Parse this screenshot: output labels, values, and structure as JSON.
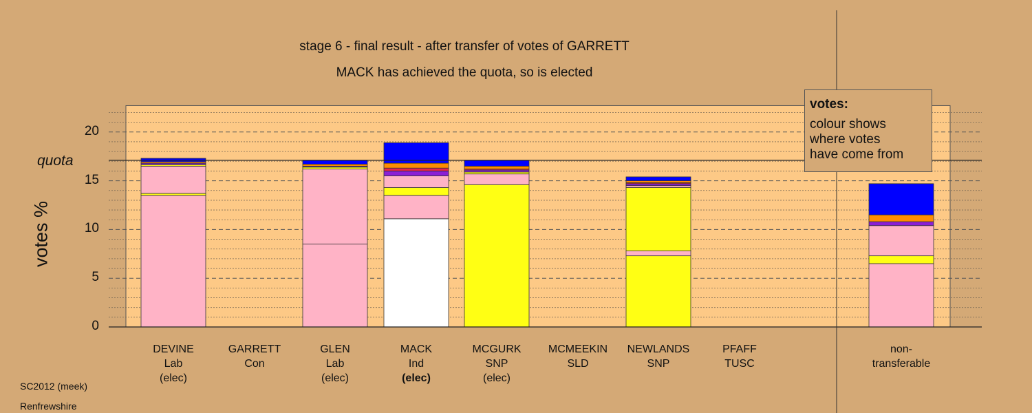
{
  "title": "stage 6 - final result - after transfer of votes of GARRETT",
  "subtitle": "MACK has achieved the quota, so is elected",
  "legend": {
    "title": "votes:",
    "text": [
      "colour shows",
      "where votes",
      "have come from"
    ]
  },
  "footer": {
    "line1": "SC2012 (meek)",
    "line2": "Renfrewshire"
  },
  "colors": {
    "background": "#d4a976",
    "plot_area": "#fdc986",
    "Lab": "#ffb3c6",
    "SNP": "#ffff14",
    "Ind": "#ffffff",
    "Con": "#0000ff",
    "LD": "#ff8c00",
    "Grn": "#8b1fd6",
    "TUSC": "#e8254a"
  },
  "chart_data": {
    "type": "bar",
    "stacked": true,
    "ylabel": "votes %",
    "ylim": [
      0,
      22
    ],
    "yticks": [
      0,
      5,
      10,
      15,
      20
    ],
    "quota": 17.1,
    "quota_label": "quota",
    "grid": true,
    "legend_position": "top-right",
    "categories": [
      {
        "name": "DEVINE",
        "party": "Lab",
        "status": "(elec)",
        "bold": false,
        "segments": [
          {
            "color": "#ffb3c6",
            "value": 13.5
          },
          {
            "color": "#ffff14",
            "value": 0.2
          },
          {
            "color": "#ffb3c6",
            "value": 2.8
          },
          {
            "color": "#ffff14",
            "value": 0.15
          },
          {
            "color": "#8b1fd6",
            "value": 0.15
          },
          {
            "color": "#ff8c00",
            "value": 0.15
          },
          {
            "color": "#0000ff",
            "value": 0.35
          }
        ]
      },
      {
        "name": "GARRETT",
        "party": "Con",
        "status": "",
        "bold": false,
        "segments": []
      },
      {
        "name": "GLEN",
        "party": "Lab",
        "status": "(elec)",
        "bold": false,
        "segments": [
          {
            "color": "#ffb3c6",
            "value": 8.5
          },
          {
            "color": "#ffb3c6",
            "value": 7.7
          },
          {
            "color": "#ffff14",
            "value": 0.2
          },
          {
            "color": "#8b1fd6",
            "value": 0.1
          },
          {
            "color": "#ff8c00",
            "value": 0.2
          },
          {
            "color": "#0000ff",
            "value": 0.4
          }
        ]
      },
      {
        "name": "MACK",
        "party": "Ind",
        "status": "(elec)",
        "bold": true,
        "segments": [
          {
            "color": "#ffffff",
            "value": 11.1
          },
          {
            "color": "#ffb3c6",
            "value": 2.4
          },
          {
            "color": "#ffff14",
            "value": 0.8
          },
          {
            "color": "#ffb3c6",
            "value": 1.2
          },
          {
            "color": "#8b1fd6",
            "value": 0.5
          },
          {
            "color": "#e8254a",
            "value": 0.3
          },
          {
            "color": "#ff8c00",
            "value": 0.5
          },
          {
            "color": "#0000ff",
            "value": 2.1
          }
        ]
      },
      {
        "name": "MCGURK",
        "party": "SNP",
        "status": "(elec)",
        "bold": false,
        "segments": [
          {
            "color": "#ffff14",
            "value": 14.6
          },
          {
            "color": "#ffb3c6",
            "value": 1.1
          },
          {
            "color": "#ffff14",
            "value": 0.2
          },
          {
            "color": "#8b1fd6",
            "value": 0.2
          },
          {
            "color": "#e8254a",
            "value": 0.1
          },
          {
            "color": "#ff8c00",
            "value": 0.3
          },
          {
            "color": "#0000ff",
            "value": 0.6
          }
        ]
      },
      {
        "name": "MCMEEKIN",
        "party": "SLD",
        "status": "",
        "bold": false,
        "segments": []
      },
      {
        "name": "NEWLANDS",
        "party": "SNP",
        "status": "",
        "bold": false,
        "segments": [
          {
            "color": "#ffff14",
            "value": 7.3
          },
          {
            "color": "#ffb3c6",
            "value": 0.5
          },
          {
            "color": "#ffff14",
            "value": 6.5
          },
          {
            "color": "#ffb3c6",
            "value": 0.2
          },
          {
            "color": "#8b1fd6",
            "value": 0.2
          },
          {
            "color": "#e8254a",
            "value": 0.1
          },
          {
            "color": "#ff8c00",
            "value": 0.2
          },
          {
            "color": "#0000ff",
            "value": 0.4
          }
        ]
      },
      {
        "name": "PFAFF",
        "party": "TUSC",
        "status": "",
        "bold": false,
        "segments": []
      },
      {
        "name": "non-",
        "party": "transferable",
        "status": "",
        "bold": false,
        "segments": [
          {
            "color": "#ffb3c6",
            "value": 6.5
          },
          {
            "color": "#ffff14",
            "value": 0.8
          },
          {
            "color": "#ffb3c6",
            "value": 3.1
          },
          {
            "color": "#8b1fd6",
            "value": 0.4
          },
          {
            "color": "#ff8c00",
            "value": 0.7
          },
          {
            "color": "#0000ff",
            "value": 3.2
          }
        ]
      }
    ]
  }
}
